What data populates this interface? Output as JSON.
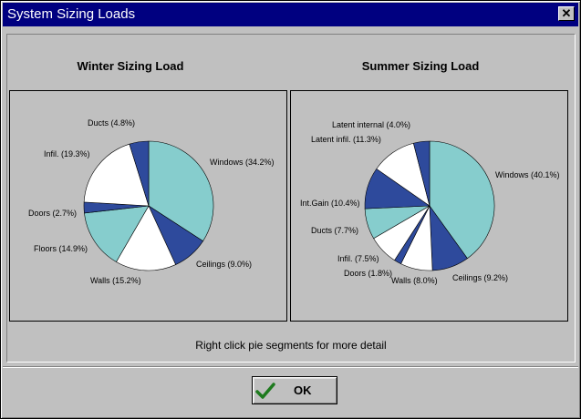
{
  "window": {
    "title": "System Sizing Loads",
    "close_glyph": "✕"
  },
  "footer_note": "Right click pie segments for more detail",
  "ok_label": "OK",
  "colors": {
    "teal": "#86cdcd",
    "navy": "#2e4a9c",
    "white": "#ffffff"
  },
  "chart_data": [
    {
      "type": "pie",
      "title": "Winter Sizing Load",
      "slices": [
        {
          "label": "Windows",
          "value": 34.2,
          "text": "Windows (34.2%)",
          "color": "#86cdcd"
        },
        {
          "label": "Ceilings",
          "value": 9.0,
          "text": "Ceilings (9.0%)",
          "color": "#2e4a9c"
        },
        {
          "label": "Walls",
          "value": 15.2,
          "text": "Walls (15.2%)",
          "color": "#ffffff"
        },
        {
          "label": "Floors",
          "value": 14.9,
          "text": "Floors (14.9%)",
          "color": "#86cdcd"
        },
        {
          "label": "Doors",
          "value": 2.7,
          "text": "Doors (2.7%)",
          "color": "#2e4a9c"
        },
        {
          "label": "Infil.",
          "value": 19.3,
          "text": "Infil. (19.3%)",
          "color": "#ffffff"
        },
        {
          "label": "Ducts",
          "value": 4.8,
          "text": "Ducts (4.8%)",
          "color": "#2e4a9c"
        }
      ]
    },
    {
      "type": "pie",
      "title": "Summer Sizing Load",
      "slices": [
        {
          "label": "Windows",
          "value": 40.1,
          "text": "Windows (40.1%)",
          "color": "#86cdcd"
        },
        {
          "label": "Ceilings",
          "value": 9.2,
          "text": "Ceilings (9.2%)",
          "color": "#2e4a9c"
        },
        {
          "label": "Walls",
          "value": 8.0,
          "text": "Walls (8.0%)",
          "color": "#ffffff"
        },
        {
          "label": "Doors",
          "value": 1.8,
          "text": "Doors (1.8%)",
          "color": "#2e4a9c"
        },
        {
          "label": "Infil.",
          "value": 7.5,
          "text": "Infil. (7.5%)",
          "color": "#ffffff"
        },
        {
          "label": "Ducts",
          "value": 7.7,
          "text": "Ducts (7.7%)",
          "color": "#86cdcd"
        },
        {
          "label": "Int.Gain",
          "value": 10.4,
          "text": "Int.Gain (10.4%)",
          "color": "#2e4a9c"
        },
        {
          "label": "Latent infil.",
          "value": 11.3,
          "text": "Latent infil. (11.3%)",
          "color": "#ffffff"
        },
        {
          "label": "Latent internal",
          "value": 4.0,
          "text": "Latent internal (4.0%)",
          "color": "#2e4a9c"
        }
      ]
    }
  ]
}
